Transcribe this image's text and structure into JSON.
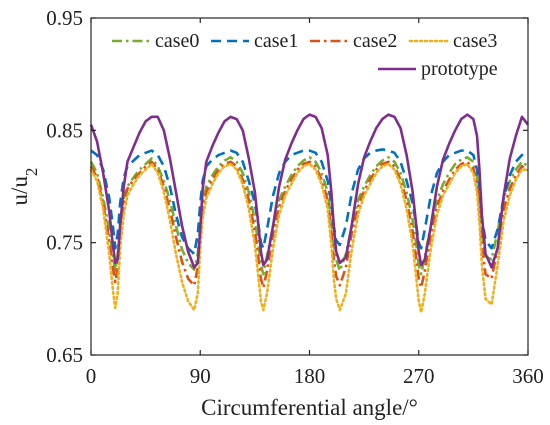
{
  "chart_data": {
    "type": "line",
    "xlabel": "Circumferential angle/°",
    "ylabel_main": "u/u",
    "ylabel_sub": "2",
    "xlim": [
      0,
      360
    ],
    "ylim": [
      0.65,
      0.95
    ],
    "xticks": [
      0,
      90,
      180,
      270,
      360
    ],
    "xtick_labels": [
      "0",
      "90",
      "180",
      "270",
      "360"
    ],
    "yticks": [
      0.65,
      0.75,
      0.85,
      0.95
    ],
    "ytick_labels": [
      "0.65",
      "0.75",
      "0.85",
      "0.95"
    ],
    "grid": false,
    "legend_position": "top-right",
    "x": [
      0,
      5,
      10,
      15,
      18,
      20,
      22,
      24,
      27,
      30,
      35,
      40,
      45,
      50,
      55,
      60,
      65,
      70,
      75,
      80,
      85,
      88,
      90,
      92,
      95,
      100,
      105,
      110,
      115,
      120,
      125,
      130,
      135,
      138,
      140,
      142,
      145,
      150,
      155,
      160,
      165,
      170,
      175,
      180,
      185,
      190,
      195,
      198,
      200,
      202,
      205,
      210,
      215,
      220,
      225,
      230,
      235,
      240,
      245,
      250,
      255,
      260,
      265,
      268,
      270,
      272,
      275,
      280,
      285,
      290,
      295,
      300,
      305,
      310,
      315,
      318,
      320,
      322,
      325,
      330,
      335,
      340,
      345,
      350,
      355,
      360
    ],
    "series": [
      {
        "name": "case0",
        "color": "#77ac30",
        "dash": "dashdot",
        "values": [
          0.822,
          0.812,
          0.79,
          0.762,
          0.738,
          0.725,
          0.74,
          0.768,
          0.79,
          0.8,
          0.808,
          0.815,
          0.82,
          0.825,
          0.818,
          0.805,
          0.788,
          0.765,
          0.744,
          0.732,
          0.726,
          0.74,
          0.765,
          0.785,
          0.8,
          0.81,
          0.818,
          0.823,
          0.826,
          0.822,
          0.812,
          0.795,
          0.77,
          0.748,
          0.73,
          0.722,
          0.738,
          0.765,
          0.788,
          0.8,
          0.81,
          0.818,
          0.823,
          0.826,
          0.822,
          0.812,
          0.795,
          0.77,
          0.748,
          0.735,
          0.725,
          0.74,
          0.765,
          0.788,
          0.8,
          0.81,
          0.818,
          0.823,
          0.826,
          0.822,
          0.812,
          0.795,
          0.77,
          0.748,
          0.73,
          0.722,
          0.738,
          0.765,
          0.788,
          0.802,
          0.812,
          0.82,
          0.824,
          0.826,
          0.822,
          0.81,
          0.79,
          0.76,
          0.738,
          0.735,
          0.76,
          0.79,
          0.805,
          0.815,
          0.822,
          0.818
        ]
      },
      {
        "name": "case1",
        "color": "#0072bd",
        "dash": "dashed",
        "values": [
          0.832,
          0.828,
          0.815,
          0.79,
          0.765,
          0.745,
          0.758,
          0.785,
          0.808,
          0.818,
          0.823,
          0.828,
          0.83,
          0.832,
          0.828,
          0.818,
          0.8,
          0.775,
          0.755,
          0.745,
          0.74,
          0.758,
          0.785,
          0.805,
          0.818,
          0.824,
          0.828,
          0.83,
          0.832,
          0.83,
          0.822,
          0.805,
          0.785,
          0.765,
          0.75,
          0.745,
          0.762,
          0.792,
          0.812,
          0.822,
          0.828,
          0.83,
          0.832,
          0.832,
          0.83,
          0.822,
          0.805,
          0.785,
          0.765,
          0.752,
          0.748,
          0.765,
          0.795,
          0.815,
          0.825,
          0.83,
          0.832,
          0.833,
          0.832,
          0.83,
          0.822,
          0.805,
          0.785,
          0.765,
          0.75,
          0.745,
          0.762,
          0.792,
          0.812,
          0.822,
          0.828,
          0.83,
          0.832,
          0.832,
          0.828,
          0.815,
          0.798,
          0.772,
          0.752,
          0.745,
          0.762,
          0.79,
          0.81,
          0.822,
          0.828,
          0.828
        ]
      },
      {
        "name": "case2",
        "color": "#d95319",
        "dash": "dashdot",
        "values": [
          0.818,
          0.808,
          0.785,
          0.752,
          0.728,
          0.715,
          0.728,
          0.762,
          0.785,
          0.798,
          0.806,
          0.812,
          0.818,
          0.822,
          0.815,
          0.8,
          0.78,
          0.755,
          0.733,
          0.718,
          0.712,
          0.728,
          0.76,
          0.78,
          0.795,
          0.806,
          0.815,
          0.82,
          0.822,
          0.818,
          0.806,
          0.788,
          0.76,
          0.735,
          0.718,
          0.71,
          0.725,
          0.758,
          0.782,
          0.796,
          0.806,
          0.815,
          0.82,
          0.822,
          0.818,
          0.806,
          0.788,
          0.76,
          0.735,
          0.72,
          0.712,
          0.728,
          0.76,
          0.782,
          0.796,
          0.806,
          0.815,
          0.82,
          0.822,
          0.818,
          0.806,
          0.788,
          0.76,
          0.735,
          0.718,
          0.71,
          0.725,
          0.758,
          0.782,
          0.796,
          0.806,
          0.815,
          0.82,
          0.822,
          0.816,
          0.802,
          0.78,
          0.748,
          0.722,
          0.718,
          0.745,
          0.78,
          0.798,
          0.81,
          0.818,
          0.815
        ]
      },
      {
        "name": "case3",
        "color": "#edb120",
        "dash": "dotted",
        "values": [
          0.815,
          0.805,
          0.78,
          0.74,
          0.708,
          0.692,
          0.705,
          0.745,
          0.775,
          0.792,
          0.802,
          0.81,
          0.815,
          0.82,
          0.812,
          0.795,
          0.77,
          0.74,
          0.715,
          0.698,
          0.69,
          0.705,
          0.745,
          0.772,
          0.79,
          0.802,
          0.812,
          0.818,
          0.82,
          0.815,
          0.802,
          0.78,
          0.748,
          0.718,
          0.698,
          0.69,
          0.705,
          0.745,
          0.775,
          0.792,
          0.802,
          0.812,
          0.818,
          0.82,
          0.815,
          0.802,
          0.78,
          0.748,
          0.718,
          0.7,
          0.69,
          0.705,
          0.745,
          0.775,
          0.792,
          0.802,
          0.812,
          0.818,
          0.82,
          0.815,
          0.802,
          0.78,
          0.748,
          0.718,
          0.698,
          0.688,
          0.705,
          0.745,
          0.775,
          0.792,
          0.802,
          0.812,
          0.818,
          0.82,
          0.812,
          0.795,
          0.768,
          0.73,
          0.7,
          0.695,
          0.73,
          0.77,
          0.792,
          0.806,
          0.815,
          0.815
        ]
      },
      {
        "name": "prototype",
        "color": "#7e2f8e",
        "dash": "solid",
        "values": [
          0.855,
          0.84,
          0.812,
          0.778,
          0.748,
          0.732,
          0.735,
          0.765,
          0.8,
          0.822,
          0.835,
          0.848,
          0.858,
          0.862,
          0.862,
          0.85,
          0.825,
          0.795,
          0.765,
          0.742,
          0.728,
          0.732,
          0.762,
          0.798,
          0.822,
          0.836,
          0.848,
          0.858,
          0.862,
          0.86,
          0.85,
          0.825,
          0.795,
          0.765,
          0.742,
          0.73,
          0.735,
          0.765,
          0.8,
          0.824,
          0.838,
          0.85,
          0.86,
          0.864,
          0.862,
          0.852,
          0.828,
          0.795,
          0.765,
          0.742,
          0.732,
          0.737,
          0.767,
          0.802,
          0.826,
          0.84,
          0.852,
          0.86,
          0.864,
          0.862,
          0.852,
          0.828,
          0.795,
          0.765,
          0.742,
          0.73,
          0.735,
          0.765,
          0.8,
          0.824,
          0.838,
          0.85,
          0.86,
          0.864,
          0.86,
          0.845,
          0.815,
          0.775,
          0.74,
          0.728,
          0.745,
          0.792,
          0.825,
          0.845,
          0.862,
          0.855
        ]
      }
    ]
  }
}
